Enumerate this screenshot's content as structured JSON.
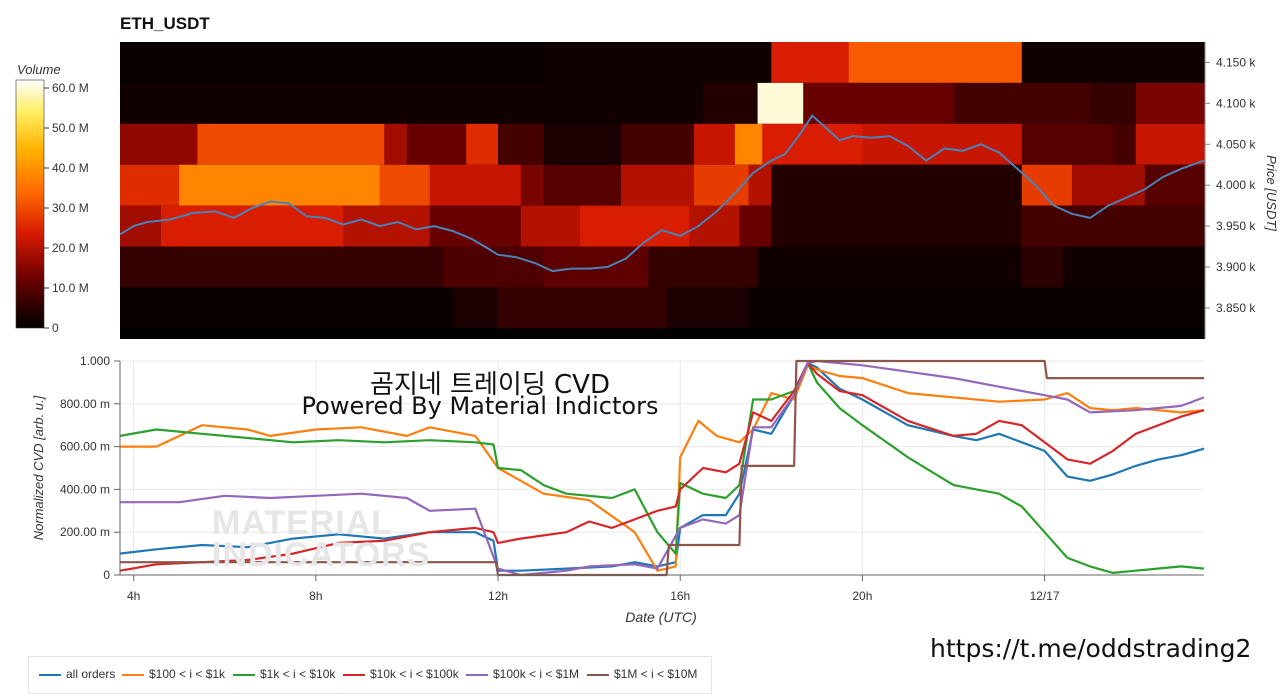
{
  "title": "ETH_USDT",
  "overlay": {
    "line1": "곰지네 트레이딩 CVD",
    "line2": "Powered By Material Indictors",
    "watermark_line1": "MATERIAL",
    "watermark_line2": "INDICATORS",
    "link": "https://t.me/oddstrading2"
  },
  "colors": {
    "all_orders": "#1f77b4",
    "s100_1k": "#ff7f0e",
    "s1k_10k": "#2ca02c",
    "s10k_100k": "#d62728",
    "s100k_1m": "#9467bd",
    "s1m_10m": "#8c564b",
    "price_line": "#4a83b8"
  },
  "chart_data": [
    {
      "type": "heatmap",
      "title": "ETH_USDT",
      "colorbar_title": "Volume",
      "colorbar_ticks": [
        "60.0 M",
        "50.0 M",
        "40.0 M",
        "30.0 M",
        "20.0 M",
        "10.0 M",
        "0"
      ],
      "colorbar_values": [
        60,
        50,
        40,
        30,
        20,
        10,
        0
      ],
      "colorbar_range": [
        0,
        62
      ],
      "ylabel_right": "Price [USDT]",
      "y_ticks": [
        "4.150 k",
        "4.100 k",
        "4.050 k",
        "4.000 k",
        "3.950 k",
        "3.900 k",
        "3.850 k"
      ],
      "y_tick_values": [
        4150,
        4100,
        4050,
        4000,
        3950,
        3900,
        3850
      ],
      "ylim": [
        3812,
        4175
      ],
      "x_hours_range": [
        3.7,
        27.5
      ],
      "price_bands": [
        {
          "low": 4125,
          "high": 4175
        },
        {
          "low": 4075,
          "high": 4125
        },
        {
          "low": 4025,
          "high": 4075
        },
        {
          "low": 3975,
          "high": 4025
        },
        {
          "low": 3925,
          "high": 3975
        },
        {
          "low": 3875,
          "high": 3925
        },
        {
          "low": 3825,
          "high": 3875
        },
        {
          "low": 3812,
          "high": 3825
        }
      ],
      "volume_segments": [
        [
          [
            3.7,
            13.0,
            1
          ],
          [
            13.0,
            18.0,
            2
          ],
          [
            18.0,
            19.7,
            24
          ],
          [
            19.7,
            23.5,
            32
          ],
          [
            23.5,
            27.5,
            2
          ]
        ],
        [
          [
            3.7,
            16.5,
            2
          ],
          [
            16.5,
            17.7,
            4
          ],
          [
            17.7,
            18.7,
            60
          ],
          [
            18.7,
            22.0,
            12
          ],
          [
            22.0,
            25.0,
            8
          ],
          [
            25.0,
            26.0,
            6
          ],
          [
            26.0,
            27.5,
            14
          ]
        ],
        [
          [
            3.7,
            5.4,
            16
          ],
          [
            5.4,
            9.5,
            30
          ],
          [
            9.5,
            10.0,
            18
          ],
          [
            10.0,
            11.3,
            12
          ],
          [
            11.3,
            12.0,
            26
          ],
          [
            12.0,
            13.0,
            8
          ],
          [
            13.0,
            14.7,
            3
          ],
          [
            14.7,
            16.3,
            8
          ],
          [
            16.3,
            17.2,
            22
          ],
          [
            17.2,
            17.8,
            38
          ],
          [
            17.8,
            20.0,
            24
          ],
          [
            20.0,
            23.5,
            22
          ],
          [
            23.5,
            25.5,
            10
          ],
          [
            25.5,
            26.0,
            8
          ],
          [
            26.0,
            27.5,
            22
          ]
        ],
        [
          [
            3.7,
            5.0,
            26
          ],
          [
            5.0,
            9.4,
            38
          ],
          [
            9.4,
            10.5,
            30
          ],
          [
            10.5,
            12.5,
            22
          ],
          [
            12.5,
            13.0,
            14
          ],
          [
            13.0,
            14.7,
            10
          ],
          [
            14.7,
            16.3,
            20
          ],
          [
            16.3,
            17.5,
            28
          ],
          [
            17.5,
            18.0,
            20
          ],
          [
            18.0,
            23.5,
            4
          ],
          [
            23.5,
            24.6,
            28
          ],
          [
            24.6,
            26.2,
            18
          ],
          [
            26.2,
            27.5,
            10
          ]
        ],
        [
          [
            3.7,
            4.6,
            18
          ],
          [
            4.6,
            8.6,
            24
          ],
          [
            8.6,
            10.5,
            20
          ],
          [
            10.5,
            12.5,
            12
          ],
          [
            12.5,
            13.8,
            20
          ],
          [
            13.8,
            16.2,
            24
          ],
          [
            16.2,
            17.3,
            20
          ],
          [
            17.3,
            18.0,
            12
          ],
          [
            18.0,
            23.5,
            4
          ],
          [
            23.5,
            27.5,
            8
          ]
        ],
        [
          [
            3.7,
            10.8,
            6
          ],
          [
            10.8,
            13.0,
            9
          ],
          [
            13.0,
            15.3,
            11
          ],
          [
            15.3,
            17.7,
            6
          ],
          [
            17.7,
            23.5,
            2
          ],
          [
            23.5,
            24.4,
            5
          ],
          [
            24.4,
            27.5,
            2
          ]
        ],
        [
          [
            3.7,
            11.0,
            1
          ],
          [
            11.0,
            12.0,
            3
          ],
          [
            12.0,
            15.7,
            6
          ],
          [
            15.7,
            17.5,
            3
          ],
          [
            17.5,
            27.5,
            1
          ]
        ],
        [
          [
            3.7,
            27.5,
            0
          ]
        ]
      ],
      "price_line_series": [
        {
          "name": "price",
          "x": [
            3.7,
            4.0,
            4.3,
            4.8,
            5.3,
            5.8,
            6.2,
            6.6,
            7.0,
            7.4,
            7.8,
            8.2,
            8.6,
            9.0,
            9.4,
            9.8,
            10.2,
            10.6,
            11.0,
            11.4,
            11.8,
            12.0,
            12.4,
            12.8,
            13.2,
            13.6,
            14.0,
            14.4,
            14.8,
            15.2,
            15.6,
            16.0,
            16.4,
            16.8,
            17.2,
            17.6,
            18.0,
            18.3,
            18.6,
            18.9,
            19.2,
            19.5,
            19.8,
            20.2,
            20.6,
            21.0,
            21.4,
            21.8,
            22.2,
            22.6,
            23.0,
            23.4,
            23.8,
            24.2,
            24.6,
            25.0,
            25.4,
            25.8,
            26.2,
            26.6,
            27.0,
            27.5
          ],
          "y": [
            3940,
            3950,
            3955,
            3958,
            3966,
            3968,
            3960,
            3972,
            3980,
            3978,
            3962,
            3960,
            3952,
            3958,
            3950,
            3955,
            3946,
            3950,
            3944,
            3935,
            3922,
            3915,
            3912,
            3905,
            3895,
            3898,
            3898,
            3900,
            3910,
            3930,
            3945,
            3938,
            3950,
            3968,
            3990,
            4015,
            4030,
            4038,
            4060,
            4085,
            4070,
            4055,
            4060,
            4058,
            4060,
            4048,
            4030,
            4045,
            4042,
            4050,
            4040,
            4020,
            4000,
            3975,
            3965,
            3960,
            3975,
            3985,
            3995,
            4010,
            4020,
            4030
          ]
        }
      ]
    },
    {
      "type": "line",
      "xlabel": "Date (UTC)",
      "ylabel": "Normalized CVD [arb. u.]",
      "x_ticks": [
        "4h",
        "8h",
        "12h",
        "16h",
        "20h",
        "12/17"
      ],
      "x_tick_hours": [
        4,
        8,
        12,
        16,
        20,
        24
      ],
      "xlim": [
        3.7,
        27.5
      ],
      "y_ticks": [
        "1.000",
        "800.00 m",
        "600.00 m",
        "400.00 m",
        "200.00 m",
        "0"
      ],
      "y_tick_values": [
        1.0,
        0.8,
        0.6,
        0.4,
        0.2,
        0.0
      ],
      "ylim": [
        0,
        1.0
      ],
      "grid": true,
      "legend_position": "bottom",
      "series": [
        {
          "name": "all orders",
          "x": [
            3.7,
            4.5,
            5.5,
            6.5,
            7.5,
            8.5,
            9.5,
            10.5,
            11.5,
            11.9,
            12.0,
            12.5,
            13.5,
            14.5,
            15.0,
            15.5,
            15.9,
            16.0,
            16.5,
            17.0,
            17.3,
            17.6,
            18.0,
            18.5,
            18.8,
            19.0,
            19.5,
            20.0,
            21.0,
            22.0,
            22.5,
            23.0,
            23.5,
            24.0,
            24.5,
            25.0,
            25.5,
            26.0,
            26.5,
            27.0,
            27.5
          ],
          "y": [
            0.1,
            0.12,
            0.14,
            0.13,
            0.17,
            0.19,
            0.17,
            0.2,
            0.2,
            0.16,
            0.02,
            0.02,
            0.03,
            0.04,
            0.06,
            0.04,
            0.06,
            0.22,
            0.28,
            0.28,
            0.38,
            0.68,
            0.66,
            0.84,
            0.99,
            0.97,
            0.87,
            0.82,
            0.7,
            0.65,
            0.63,
            0.66,
            0.62,
            0.58,
            0.46,
            0.44,
            0.47,
            0.51,
            0.54,
            0.56,
            0.59
          ]
        },
        {
          "name": "$100 < i < $1k",
          "x": [
            3.7,
            4.5,
            5.5,
            6.5,
            7.0,
            8.0,
            9.0,
            10.0,
            10.5,
            11.5,
            12.0,
            13.0,
            14.0,
            15.0,
            15.5,
            15.9,
            16.0,
            16.4,
            16.8,
            17.3,
            17.6,
            18.0,
            18.5,
            18.8,
            19.0,
            19.5,
            20.0,
            21.0,
            22.0,
            23.0,
            24.0,
            24.5,
            25.0,
            25.5,
            26.0,
            27.0,
            27.5
          ],
          "y": [
            0.6,
            0.6,
            0.7,
            0.68,
            0.65,
            0.68,
            0.69,
            0.65,
            0.69,
            0.65,
            0.5,
            0.38,
            0.35,
            0.2,
            0.02,
            0.04,
            0.55,
            0.72,
            0.65,
            0.62,
            0.68,
            0.85,
            0.82,
            0.98,
            0.96,
            0.93,
            0.92,
            0.85,
            0.83,
            0.81,
            0.82,
            0.85,
            0.78,
            0.77,
            0.78,
            0.76,
            0.77
          ]
        },
        {
          "name": "$1k < i < $10k",
          "x": [
            3.7,
            4.5,
            5.5,
            6.5,
            7.5,
            8.5,
            9.5,
            10.5,
            11.5,
            11.9,
            12.0,
            12.5,
            13.0,
            13.5,
            14.5,
            15.0,
            15.5,
            15.9,
            16.0,
            16.5,
            17.0,
            17.3,
            17.6,
            18.0,
            18.5,
            18.8,
            19.0,
            19.5,
            20.0,
            21.0,
            22.0,
            23.0,
            23.5,
            24.0,
            24.5,
            25.0,
            25.5,
            26.0,
            27.0,
            27.5
          ],
          "y": [
            0.65,
            0.68,
            0.66,
            0.64,
            0.62,
            0.63,
            0.62,
            0.63,
            0.62,
            0.61,
            0.5,
            0.49,
            0.42,
            0.38,
            0.36,
            0.4,
            0.2,
            0.1,
            0.43,
            0.38,
            0.36,
            0.42,
            0.82,
            0.82,
            0.86,
            0.99,
            0.9,
            0.78,
            0.7,
            0.55,
            0.42,
            0.38,
            0.32,
            0.2,
            0.08,
            0.04,
            0.01,
            0.02,
            0.04,
            0.03
          ]
        },
        {
          "name": "$10k < i < $100k",
          "x": [
            3.7,
            4.5,
            5.5,
            6.5,
            7.5,
            8.5,
            9.5,
            10.5,
            11.5,
            11.9,
            12.0,
            12.5,
            13.5,
            14.0,
            14.5,
            15.0,
            15.5,
            15.9,
            16.0,
            16.5,
            17.0,
            17.3,
            17.6,
            18.0,
            18.5,
            18.8,
            19.0,
            19.5,
            20.0,
            21.0,
            22.0,
            22.5,
            23.0,
            23.5,
            24.0,
            24.5,
            25.0,
            25.5,
            26.0,
            27.0,
            27.5
          ],
          "y": [
            0.02,
            0.05,
            0.06,
            0.07,
            0.1,
            0.15,
            0.16,
            0.2,
            0.22,
            0.2,
            0.15,
            0.17,
            0.2,
            0.25,
            0.22,
            0.26,
            0.3,
            0.32,
            0.4,
            0.5,
            0.48,
            0.52,
            0.76,
            0.72,
            0.86,
            0.99,
            0.94,
            0.86,
            0.84,
            0.72,
            0.65,
            0.66,
            0.72,
            0.7,
            0.62,
            0.54,
            0.52,
            0.58,
            0.66,
            0.74,
            0.77
          ]
        },
        {
          "name": "$100k < i < $1M",
          "x": [
            3.7,
            5.0,
            6.0,
            7.0,
            8.0,
            9.0,
            10.0,
            10.5,
            11.5,
            12.0,
            12.5,
            13.5,
            14.0,
            15.0,
            15.5,
            16.0,
            16.5,
            17.0,
            17.3,
            17.6,
            18.0,
            18.5,
            18.8,
            19.0,
            20.0,
            21.0,
            22.0,
            23.0,
            24.0,
            24.5,
            25.0,
            26.0,
            27.0,
            27.5
          ],
          "y": [
            0.34,
            0.34,
            0.37,
            0.36,
            0.37,
            0.38,
            0.36,
            0.3,
            0.31,
            0.03,
            0.0,
            0.02,
            0.04,
            0.05,
            0.03,
            0.22,
            0.26,
            0.24,
            0.28,
            0.69,
            0.69,
            0.84,
            0.99,
            1.0,
            0.98,
            0.95,
            0.92,
            0.88,
            0.84,
            0.82,
            0.76,
            0.77,
            0.79,
            0.83
          ]
        },
        {
          "name": "$1M < i < $10M",
          "x": [
            3.7,
            11.95,
            12.0,
            15.7,
            15.75,
            17.3,
            17.35,
            18.5,
            18.55,
            24.0,
            24.05,
            27.5
          ],
          "y": [
            0.06,
            0.06,
            0.0,
            0.0,
            0.14,
            0.14,
            0.51,
            0.51,
            1.0,
            1.0,
            0.92,
            0.92
          ]
        }
      ]
    }
  ],
  "legend": [
    {
      "label": "all orders",
      "color": "#1f77b4"
    },
    {
      "label": "$100 < i < $1k",
      "color": "#ff7f0e"
    },
    {
      "label": "$1k < i < $10k",
      "color": "#2ca02c"
    },
    {
      "label": "$10k < i < $100k",
      "color": "#d62728"
    },
    {
      "label": "$100k < i < $1M",
      "color": "#9467bd"
    },
    {
      "label": "$1M < i < $10M",
      "color": "#8c564b"
    }
  ]
}
